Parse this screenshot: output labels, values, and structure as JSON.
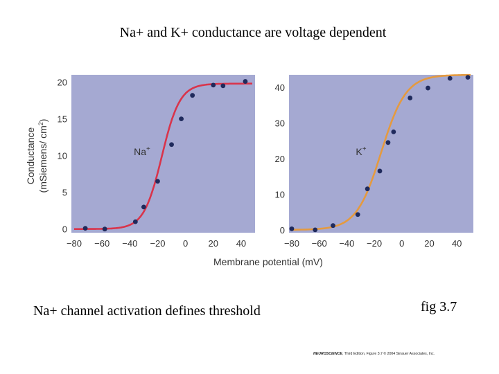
{
  "slide": {
    "title": "Na+ and K+ conductance are voltage dependent",
    "caption_left": "Na+ channel activation defines threshold",
    "caption_right": "fig 3.7",
    "credit_book": "NEUROSCIENCE",
    "credit_rest": ", Third Edition, Figure 3.7  © 2004 Sinauer Associates, Inc."
  },
  "colors": {
    "panel_bg": "#a5a9d2",
    "na_curve": "#d9344b",
    "k_curve": "#e59a3f",
    "point": "#1f2a5c"
  },
  "chart_data": [
    {
      "type": "scatter",
      "id": "na",
      "series_label": "Na",
      "series_superscript": "+",
      "ylabel_line1": "Conductance",
      "ylabel_line2": "(mSiemens/ cm",
      "ylabel_sup": "2",
      "ylabel_close": ")",
      "xlim": [
        -82,
        50
      ],
      "ylim": [
        -0.5,
        21
      ],
      "xticks": [
        -80,
        -60,
        -40,
        -20,
        0,
        20,
        40
      ],
      "xtick_labels": [
        "−80",
        "−60",
        "−40",
        "−20",
        "0",
        "20",
        "40"
      ],
      "yticks": [
        0,
        5,
        10,
        15,
        20
      ],
      "ytick_labels": [
        "0",
        "5",
        "10",
        "15",
        "20"
      ],
      "points": [
        {
          "x": -72,
          "y": 0.1
        },
        {
          "x": -58,
          "y": 0.0
        },
        {
          "x": -36,
          "y": 1.0
        },
        {
          "x": -30,
          "y": 3.0
        },
        {
          "x": -20,
          "y": 6.5
        },
        {
          "x": -10,
          "y": 11.5
        },
        {
          "x": -3,
          "y": 15.0
        },
        {
          "x": 5,
          "y": 18.2
        },
        {
          "x": 20,
          "y": 19.6
        },
        {
          "x": 27,
          "y": 19.5
        },
        {
          "x": 43,
          "y": 20.1
        }
      ],
      "fit": {
        "gmax": 19.8,
        "v_half": -17,
        "slope": 6.5
      }
    },
    {
      "type": "scatter",
      "id": "k",
      "series_label": "K",
      "series_superscript": "+",
      "xlabel": "Membrane potential (mV)",
      "xlim": [
        -82,
        52
      ],
      "ylim": [
        -0.8,
        43.5
      ],
      "xticks": [
        -80,
        -60,
        -40,
        -20,
        0,
        20,
        40
      ],
      "xtick_labels": [
        "−80",
        "−60",
        "−40",
        "−20",
        "0",
        "20",
        "40"
      ],
      "yticks": [
        0,
        10,
        20,
        30,
        40
      ],
      "ytick_labels": [
        "0",
        "10",
        "20",
        "30",
        "40"
      ],
      "points": [
        {
          "x": -80,
          "y": 0.3
        },
        {
          "x": -63,
          "y": 0.0
        },
        {
          "x": -50,
          "y": 1.2
        },
        {
          "x": -32,
          "y": 4.3
        },
        {
          "x": -25,
          "y": 11.5
        },
        {
          "x": -16,
          "y": 16.5
        },
        {
          "x": -10,
          "y": 24.5
        },
        {
          "x": -6,
          "y": 27.5
        },
        {
          "x": 6,
          "y": 37.0
        },
        {
          "x": 19,
          "y": 39.8
        },
        {
          "x": 35,
          "y": 42.5
        },
        {
          "x": 48,
          "y": 42.8
        }
      ],
      "fit": {
        "gmax": 43.5,
        "v_half": -15,
        "slope": 9
      }
    }
  ]
}
